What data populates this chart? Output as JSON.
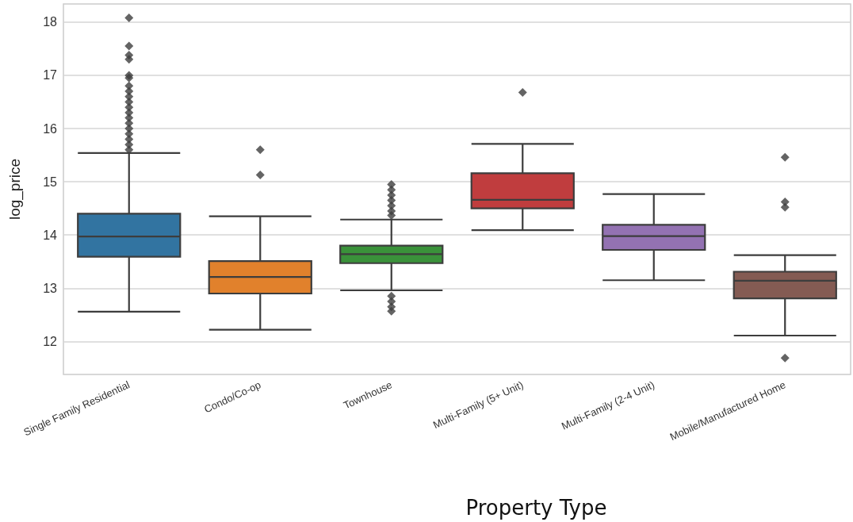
{
  "chart_data": {
    "type": "box",
    "categories": [
      "Single Family Residential",
      "Condo/Co-op",
      "Townhouse",
      "Multi-Family (5+ Unit)",
      "Multi-Family (2-4 Unit)",
      "Mobile/Manufactured Home"
    ],
    "colors": [
      "#3274a1",
      "#e1812c",
      "#3a923a",
      "#c03d3e",
      "#9372b2",
      "#845b53"
    ],
    "boxes": [
      {
        "low": 12.56,
        "q1": 13.59,
        "median": 13.97,
        "q3": 14.4,
        "high": 15.54,
        "outliers": [
          15.6,
          15.7,
          15.8,
          15.9,
          16.0,
          16.1,
          16.2,
          16.3,
          16.4,
          16.5,
          16.6,
          16.7,
          16.8,
          16.95,
          17.0,
          17.3,
          17.38,
          17.55,
          18.08
        ]
      },
      {
        "low": 12.22,
        "q1": 12.9,
        "median": 13.21,
        "q3": 13.51,
        "high": 14.35,
        "outliers": [
          15.13,
          15.6
        ]
      },
      {
        "low": 12.96,
        "q1": 13.47,
        "median": 13.64,
        "q3": 13.8,
        "high": 14.29,
        "outliers": [
          12.57,
          12.65,
          12.75,
          12.85,
          14.37,
          14.45,
          14.55,
          14.65,
          14.75,
          14.85,
          14.95
        ]
      },
      {
        "low": 14.09,
        "q1": 14.5,
        "median": 14.66,
        "q3": 15.16,
        "high": 15.71,
        "outliers": [
          16.68
        ]
      },
      {
        "low": 13.15,
        "q1": 13.72,
        "median": 13.98,
        "q3": 14.19,
        "high": 14.77
      },
      {
        "low": 12.11,
        "q1": 12.81,
        "median": 13.14,
        "q3": 13.31,
        "high": 13.62,
        "outliers": [
          11.69,
          14.52,
          14.62,
          15.46
        ]
      }
    ],
    "xlabel": "Property Type",
    "ylabel": "log_price",
    "ylim": [
      11.38,
      18.34
    ],
    "yticks": [
      12,
      13,
      14,
      15,
      16,
      17,
      18
    ],
    "grid": "y",
    "marker": "diamond"
  }
}
